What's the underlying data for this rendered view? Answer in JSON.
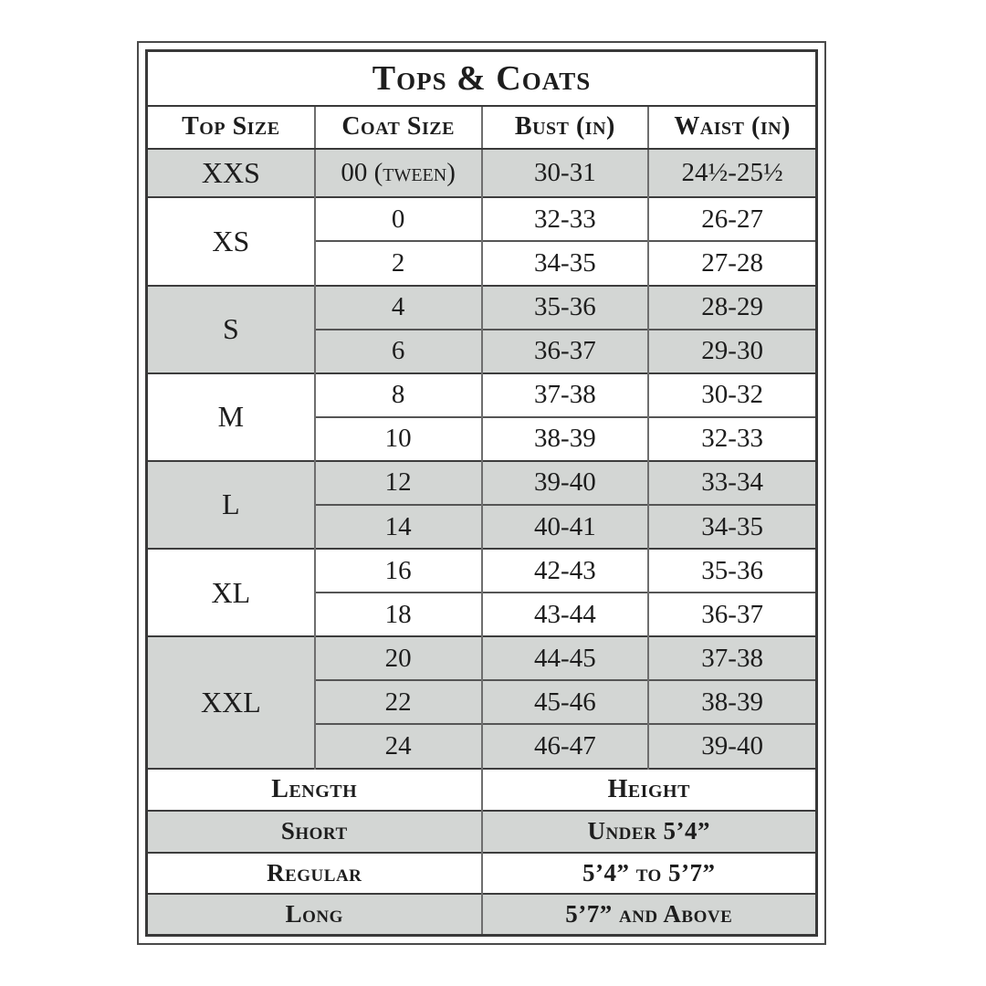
{
  "table": {
    "title": "Tops & Coats",
    "columns": [
      "Top Size",
      "Coat Size",
      "Bust (in)",
      "Waist (in)"
    ],
    "groups": [
      {
        "size": "XXS",
        "shade": true,
        "rows": [
          [
            "00 (tween)",
            "30-31",
            "24½-25½"
          ]
        ]
      },
      {
        "size": "XS",
        "shade": false,
        "rows": [
          [
            "0",
            "32-33",
            "26-27"
          ],
          [
            "2",
            "34-35",
            "27-28"
          ]
        ]
      },
      {
        "size": "S",
        "shade": true,
        "rows": [
          [
            "4",
            "35-36",
            "28-29"
          ],
          [
            "6",
            "36-37",
            "29-30"
          ]
        ]
      },
      {
        "size": "M",
        "shade": false,
        "rows": [
          [
            "8",
            "37-38",
            "30-32"
          ],
          [
            "10",
            "38-39",
            "32-33"
          ]
        ]
      },
      {
        "size": "L",
        "shade": true,
        "rows": [
          [
            "12",
            "39-40",
            "33-34"
          ],
          [
            "14",
            "40-41",
            "34-35"
          ]
        ]
      },
      {
        "size": "XL",
        "shade": false,
        "rows": [
          [
            "16",
            "42-43",
            "35-36"
          ],
          [
            "18",
            "43-44",
            "36-37"
          ]
        ]
      },
      {
        "size": "XXL",
        "shade": true,
        "rows": [
          [
            "20",
            "44-45",
            "37-38"
          ],
          [
            "22",
            "45-46",
            "38-39"
          ],
          [
            "24",
            "46-47",
            "39-40"
          ]
        ]
      }
    ],
    "length_height": {
      "headers": [
        "Length",
        "Height"
      ],
      "rows": [
        {
          "length": "Short",
          "height": "Under 5’4”",
          "shade": true
        },
        {
          "length": "Regular",
          "height": "5’4” to 5’7”",
          "shade": false
        },
        {
          "length": "Long",
          "height": "5’7” and Above",
          "shade": true
        }
      ]
    },
    "colors": {
      "shade_fill": "#d3d6d4",
      "border_dark": "#393939",
      "border_gray": "#6e6e6e",
      "text": "#1d1d1d",
      "background": "#ffffff"
    }
  }
}
